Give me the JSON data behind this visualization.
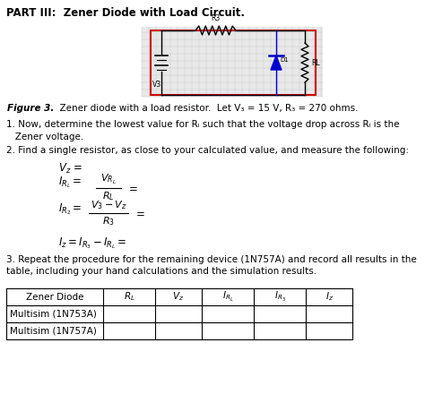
{
  "title": "PART III:  Zener Diode with Load Circuit.",
  "figure_caption_bold": "Figure 3.",
  "figure_caption_rest": "  Zener diode with a load resistor.  Let V₃ = 15 V, R₃ = 270 ohms.",
  "item1_line1": "1. Now, determine the lowest value for Rₗ such that the voltage drop across Rₗ is the",
  "item1_line2": "   Zener voltage.",
  "item2": "2. Find a single resistor, as close to your calculated value, and measure the following:",
  "item3_line1": "3. Repeat the procedure for the remaining device (1N757A) and record all results in the",
  "item3_line2": "table, including your hand calculations and the simulation results.",
  "table_rows": [
    "Multisim (1N753A)",
    "Multisim (1N757A)"
  ],
  "bg_color": "#ffffff",
  "circuit_border": "#cc0000",
  "diode_color": "#0000cc",
  "grid_color": "#c8c8c8"
}
